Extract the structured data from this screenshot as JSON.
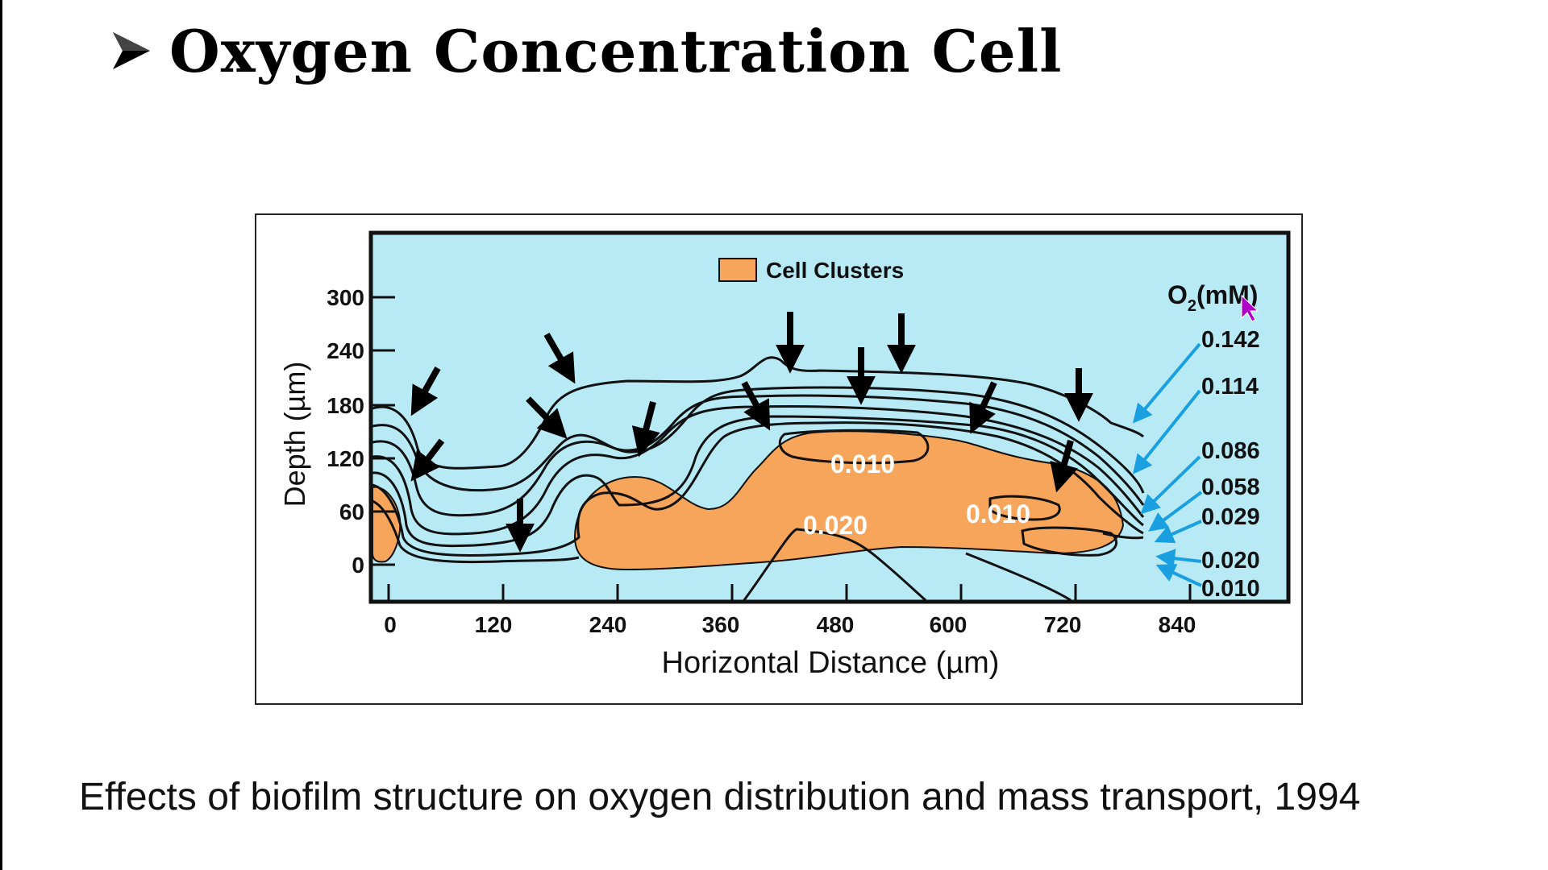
{
  "slide": {
    "title": "Oxygen Concentration Cell",
    "caption": "Effects of biofilm structure on oxygen distribution and mass transport, 1994"
  },
  "figure": {
    "legend_label": "Cell Clusters",
    "o2_unit_main": "O",
    "o2_unit_sub": "2",
    "o2_unit_rest": "(mM)",
    "x_axis_label": "Horizontal Distance (µm)",
    "y_axis_label": "Depth (µm)",
    "x_ticks": [
      "0",
      "120",
      "240",
      "360",
      "480",
      "600",
      "720",
      "840"
    ],
    "y_ticks": [
      "300",
      "240",
      "180",
      "120",
      "60",
      "0"
    ],
    "contour_levels": [
      "0.142",
      "0.114",
      "0.086",
      "0.058",
      "0.029",
      "0.020",
      "0.010"
    ],
    "inner_labels": [
      "0.010",
      "0.010",
      "0.020"
    ]
  },
  "colors": {
    "background": "#b8eaf6",
    "cell_clusters": "#f6a55a",
    "contour": "#111111",
    "pointer_arrow": "#1aa0e0",
    "flux_arrow": "#000000"
  }
}
